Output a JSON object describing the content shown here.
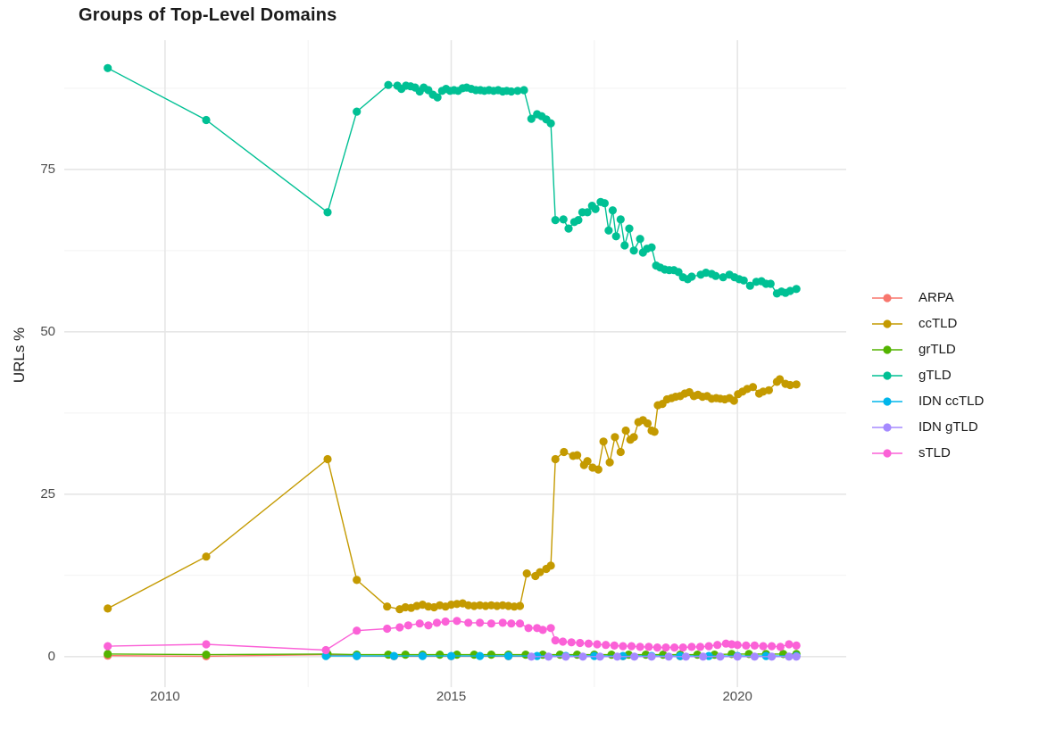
{
  "title": "Groups of Top-Level Domains",
  "axes": {
    "y_label": "URLs %",
    "y_ticks": [
      0,
      25,
      50,
      75
    ],
    "y_minor": [
      12.5,
      37.5,
      62.5,
      87.5
    ],
    "x_ticks": [
      2010,
      2015,
      2020
    ],
    "x_minor": [
      2012.5,
      2017.5
    ],
    "x_domain": [
      2008.24,
      2021.9
    ],
    "y_domain": [
      -4.7,
      94.9
    ]
  },
  "grid": {
    "major_color": "#e6e6e6",
    "minor_color": "#f2f2f2"
  },
  "chart_data": {
    "type": "line",
    "title": "Groups of Top-Level Domains",
    "xlabel": "",
    "ylabel": "URLs %",
    "x_unit": "year (decimal)",
    "legend_position": "right",
    "grid": true,
    "series": [
      {
        "name": "ARPA",
        "color": "#F8766D",
        "points": [
          [
            2009.0,
            0.15
          ],
          [
            2010.72,
            0.05
          ],
          [
            2012.84,
            0.3
          ],
          [
            2013.35,
            0.1
          ],
          [
            2014.0,
            0.05
          ],
          [
            2015.0,
            0.05
          ],
          [
            2016.0,
            0.05
          ],
          [
            2017.0,
            0.05
          ],
          [
            2018.0,
            0.05
          ],
          [
            2019.0,
            0.05
          ],
          [
            2020.0,
            0.05
          ],
          [
            2021.03,
            0.05
          ]
        ]
      },
      {
        "name": "ccTLD",
        "color": "#C49A00",
        "points": [
          [
            2009.0,
            7.4
          ],
          [
            2010.72,
            15.4
          ],
          [
            2012.84,
            30.4
          ],
          [
            2013.35,
            11.8
          ],
          [
            2013.88,
            7.7
          ],
          [
            2014.1,
            7.3
          ],
          [
            2014.2,
            7.6
          ],
          [
            2014.3,
            7.5
          ],
          [
            2014.4,
            7.8
          ],
          [
            2014.5,
            8.0
          ],
          [
            2014.6,
            7.7
          ],
          [
            2014.7,
            7.6
          ],
          [
            2014.8,
            7.9
          ],
          [
            2014.9,
            7.7
          ],
          [
            2015.0,
            8.0
          ],
          [
            2015.1,
            8.1
          ],
          [
            2015.2,
            8.2
          ],
          [
            2015.3,
            7.9
          ],
          [
            2015.4,
            7.8
          ],
          [
            2015.5,
            7.9
          ],
          [
            2015.6,
            7.8
          ],
          [
            2015.7,
            7.9
          ],
          [
            2015.8,
            7.8
          ],
          [
            2015.9,
            7.9
          ],
          [
            2016.0,
            7.8
          ],
          [
            2016.1,
            7.7
          ],
          [
            2016.2,
            7.8
          ],
          [
            2016.32,
            12.8
          ],
          [
            2016.47,
            12.4
          ],
          [
            2016.55,
            13.0
          ],
          [
            2016.66,
            13.5
          ],
          [
            2016.74,
            14.0
          ],
          [
            2016.82,
            30.4
          ],
          [
            2016.97,
            31.5
          ],
          [
            2017.13,
            30.9
          ],
          [
            2017.2,
            31.0
          ],
          [
            2017.32,
            29.5
          ],
          [
            2017.38,
            30.1
          ],
          [
            2017.47,
            29.1
          ],
          [
            2017.57,
            28.8
          ],
          [
            2017.66,
            33.1
          ],
          [
            2017.77,
            29.9
          ],
          [
            2017.86,
            33.8
          ],
          [
            2017.96,
            31.5
          ],
          [
            2018.05,
            34.8
          ],
          [
            2018.13,
            33.4
          ],
          [
            2018.19,
            33.8
          ],
          [
            2018.27,
            36.1
          ],
          [
            2018.35,
            36.4
          ],
          [
            2018.43,
            35.9
          ],
          [
            2018.5,
            34.8
          ],
          [
            2018.55,
            34.6
          ],
          [
            2018.61,
            38.7
          ],
          [
            2018.69,
            38.9
          ],
          [
            2018.77,
            39.6
          ],
          [
            2018.85,
            39.8
          ],
          [
            2018.92,
            40.0
          ],
          [
            2019.0,
            40.1
          ],
          [
            2019.08,
            40.5
          ],
          [
            2019.16,
            40.7
          ],
          [
            2019.24,
            40.1
          ],
          [
            2019.31,
            40.3
          ],
          [
            2019.39,
            40.0
          ],
          [
            2019.47,
            40.1
          ],
          [
            2019.55,
            39.7
          ],
          [
            2019.63,
            39.8
          ],
          [
            2019.7,
            39.7
          ],
          [
            2019.78,
            39.6
          ],
          [
            2019.86,
            39.8
          ],
          [
            2019.94,
            39.4
          ],
          [
            2020.01,
            40.4
          ],
          [
            2020.09,
            40.8
          ],
          [
            2020.17,
            41.2
          ],
          [
            2020.27,
            41.5
          ],
          [
            2020.38,
            40.5
          ],
          [
            2020.45,
            40.8
          ],
          [
            2020.55,
            41.0
          ],
          [
            2020.69,
            42.3
          ],
          [
            2020.74,
            42.7
          ],
          [
            2020.84,
            42.0
          ],
          [
            2020.92,
            41.8
          ],
          [
            2021.03,
            41.9
          ]
        ]
      },
      {
        "name": "grTLD",
        "color": "#53B400",
        "points": [
          [
            2009.0,
            0.4
          ],
          [
            2010.72,
            0.3
          ],
          [
            2012.84,
            0.4
          ],
          [
            2013.35,
            0.3
          ],
          [
            2013.9,
            0.3
          ],
          [
            2014.2,
            0.3
          ],
          [
            2014.5,
            0.3
          ],
          [
            2014.8,
            0.3
          ],
          [
            2015.1,
            0.3
          ],
          [
            2015.4,
            0.3
          ],
          [
            2015.7,
            0.3
          ],
          [
            2016.0,
            0.3
          ],
          [
            2016.3,
            0.3
          ],
          [
            2016.6,
            0.3
          ],
          [
            2016.9,
            0.3
          ],
          [
            2017.2,
            0.3
          ],
          [
            2017.5,
            0.3
          ],
          [
            2017.8,
            0.3
          ],
          [
            2018.1,
            0.3
          ],
          [
            2018.4,
            0.3
          ],
          [
            2018.7,
            0.3
          ],
          [
            2019.0,
            0.3
          ],
          [
            2019.3,
            0.3
          ],
          [
            2019.6,
            0.3
          ],
          [
            2019.9,
            0.4
          ],
          [
            2020.2,
            0.4
          ],
          [
            2020.5,
            0.4
          ],
          [
            2020.8,
            0.4
          ],
          [
            2021.03,
            0.4
          ]
        ]
      },
      {
        "name": "gTLD",
        "color": "#00C094",
        "points": [
          [
            2009.0,
            90.6
          ],
          [
            2010.72,
            82.6
          ],
          [
            2012.84,
            68.4
          ],
          [
            2013.35,
            83.9
          ],
          [
            2013.9,
            88.0
          ],
          [
            2014.06,
            87.9
          ],
          [
            2014.13,
            87.4
          ],
          [
            2014.21,
            87.9
          ],
          [
            2014.29,
            87.8
          ],
          [
            2014.37,
            87.6
          ],
          [
            2014.45,
            87.0
          ],
          [
            2014.52,
            87.6
          ],
          [
            2014.6,
            87.2
          ],
          [
            2014.68,
            86.5
          ],
          [
            2014.76,
            86.1
          ],
          [
            2014.84,
            87.1
          ],
          [
            2014.91,
            87.4
          ],
          [
            2014.98,
            87.1
          ],
          [
            2015.05,
            87.2
          ],
          [
            2015.12,
            87.1
          ],
          [
            2015.2,
            87.5
          ],
          [
            2015.27,
            87.6
          ],
          [
            2015.35,
            87.4
          ],
          [
            2015.43,
            87.2
          ],
          [
            2015.51,
            87.2
          ],
          [
            2015.58,
            87.1
          ],
          [
            2015.66,
            87.2
          ],
          [
            2015.74,
            87.1
          ],
          [
            2015.82,
            87.2
          ],
          [
            2015.9,
            87.0
          ],
          [
            2015.97,
            87.1
          ],
          [
            2016.05,
            87.0
          ],
          [
            2016.16,
            87.1
          ],
          [
            2016.27,
            87.2
          ],
          [
            2016.4,
            82.8
          ],
          [
            2016.5,
            83.5
          ],
          [
            2016.58,
            83.2
          ],
          [
            2016.66,
            82.7
          ],
          [
            2016.74,
            82.1
          ],
          [
            2016.82,
            67.2
          ],
          [
            2016.96,
            67.3
          ],
          [
            2017.05,
            65.9
          ],
          [
            2017.15,
            66.9
          ],
          [
            2017.22,
            67.2
          ],
          [
            2017.29,
            68.4
          ],
          [
            2017.38,
            68.4
          ],
          [
            2017.46,
            69.4
          ],
          [
            2017.52,
            68.9
          ],
          [
            2017.61,
            70.0
          ],
          [
            2017.68,
            69.8
          ],
          [
            2017.75,
            65.6
          ],
          [
            2017.82,
            68.7
          ],
          [
            2017.88,
            64.7
          ],
          [
            2017.96,
            67.3
          ],
          [
            2018.03,
            63.3
          ],
          [
            2018.11,
            65.9
          ],
          [
            2018.19,
            62.5
          ],
          [
            2018.3,
            64.3
          ],
          [
            2018.35,
            62.2
          ],
          [
            2018.42,
            62.8
          ],
          [
            2018.5,
            63.0
          ],
          [
            2018.58,
            60.2
          ],
          [
            2018.65,
            59.9
          ],
          [
            2018.73,
            59.6
          ],
          [
            2018.81,
            59.5
          ],
          [
            2018.89,
            59.5
          ],
          [
            2018.97,
            59.2
          ],
          [
            2019.05,
            58.4
          ],
          [
            2019.13,
            58.1
          ],
          [
            2019.2,
            58.5
          ],
          [
            2019.36,
            58.8
          ],
          [
            2019.45,
            59.1
          ],
          [
            2019.55,
            58.9
          ],
          [
            2019.62,
            58.6
          ],
          [
            2019.75,
            58.4
          ],
          [
            2019.86,
            58.8
          ],
          [
            2019.95,
            58.4
          ],
          [
            2020.03,
            58.1
          ],
          [
            2020.11,
            57.9
          ],
          [
            2020.22,
            57.1
          ],
          [
            2020.33,
            57.7
          ],
          [
            2020.42,
            57.8
          ],
          [
            2020.5,
            57.4
          ],
          [
            2020.58,
            57.4
          ],
          [
            2020.69,
            55.9
          ],
          [
            2020.77,
            56.2
          ],
          [
            2020.84,
            56.0
          ],
          [
            2020.92,
            56.3
          ],
          [
            2021.03,
            56.6
          ]
        ]
      },
      {
        "name": "IDN ccTLD",
        "color": "#00B6EB",
        "points": [
          [
            2012.81,
            0.1
          ],
          [
            2013.35,
            0.1
          ],
          [
            2014.0,
            0.1
          ],
          [
            2014.5,
            0.1
          ],
          [
            2015.0,
            0.1
          ],
          [
            2015.5,
            0.1
          ],
          [
            2016.0,
            0.1
          ],
          [
            2016.5,
            0.1
          ],
          [
            2017.0,
            0.1
          ],
          [
            2017.5,
            0.1
          ],
          [
            2018.0,
            0.1
          ],
          [
            2018.5,
            0.1
          ],
          [
            2019.0,
            0.1
          ],
          [
            2019.5,
            0.1
          ],
          [
            2020.0,
            0.1
          ],
          [
            2020.5,
            0.1
          ],
          [
            2021.03,
            0.1
          ]
        ]
      },
      {
        "name": "IDN gTLD",
        "color": "#A58AFF",
        "points": [
          [
            2016.4,
            0.0
          ],
          [
            2016.7,
            0.0
          ],
          [
            2017.0,
            0.0
          ],
          [
            2017.3,
            0.0
          ],
          [
            2017.6,
            0.0
          ],
          [
            2017.9,
            0.0
          ],
          [
            2018.2,
            0.0
          ],
          [
            2018.5,
            0.0
          ],
          [
            2018.8,
            0.0
          ],
          [
            2019.1,
            0.0
          ],
          [
            2019.4,
            0.0
          ],
          [
            2019.7,
            0.0
          ],
          [
            2020.0,
            0.0
          ],
          [
            2020.3,
            0.0
          ],
          [
            2020.6,
            0.0
          ],
          [
            2020.9,
            0.0
          ],
          [
            2021.03,
            0.0
          ]
        ]
      },
      {
        "name": "sTLD",
        "color": "#FB61D7",
        "points": [
          [
            2009.0,
            1.6
          ],
          [
            2010.72,
            1.9
          ],
          [
            2012.81,
            1.0
          ],
          [
            2013.35,
            4.0
          ],
          [
            2013.88,
            4.3
          ],
          [
            2014.1,
            4.5
          ],
          [
            2014.25,
            4.8
          ],
          [
            2014.45,
            5.1
          ],
          [
            2014.6,
            4.8
          ],
          [
            2014.75,
            5.2
          ],
          [
            2014.9,
            5.4
          ],
          [
            2015.1,
            5.5
          ],
          [
            2015.3,
            5.2
          ],
          [
            2015.5,
            5.2
          ],
          [
            2015.7,
            5.1
          ],
          [
            2015.9,
            5.2
          ],
          [
            2016.05,
            5.1
          ],
          [
            2016.2,
            5.1
          ],
          [
            2016.35,
            4.4
          ],
          [
            2016.5,
            4.4
          ],
          [
            2016.6,
            4.1
          ],
          [
            2016.74,
            4.4
          ],
          [
            2016.82,
            2.5
          ],
          [
            2016.95,
            2.3
          ],
          [
            2017.1,
            2.2
          ],
          [
            2017.25,
            2.1
          ],
          [
            2017.4,
            2.0
          ],
          [
            2017.55,
            1.9
          ],
          [
            2017.7,
            1.8
          ],
          [
            2017.85,
            1.7
          ],
          [
            2018.0,
            1.6
          ],
          [
            2018.15,
            1.6
          ],
          [
            2018.3,
            1.5
          ],
          [
            2018.45,
            1.5
          ],
          [
            2018.6,
            1.4
          ],
          [
            2018.75,
            1.4
          ],
          [
            2018.9,
            1.4
          ],
          [
            2019.05,
            1.4
          ],
          [
            2019.2,
            1.5
          ],
          [
            2019.35,
            1.5
          ],
          [
            2019.5,
            1.6
          ],
          [
            2019.65,
            1.8
          ],
          [
            2019.8,
            2.0
          ],
          [
            2019.9,
            1.9
          ],
          [
            2020.0,
            1.8
          ],
          [
            2020.15,
            1.7
          ],
          [
            2020.3,
            1.7
          ],
          [
            2020.45,
            1.6
          ],
          [
            2020.6,
            1.6
          ],
          [
            2020.75,
            1.5
          ],
          [
            2020.9,
            1.9
          ],
          [
            2021.03,
            1.7
          ]
        ]
      }
    ]
  }
}
